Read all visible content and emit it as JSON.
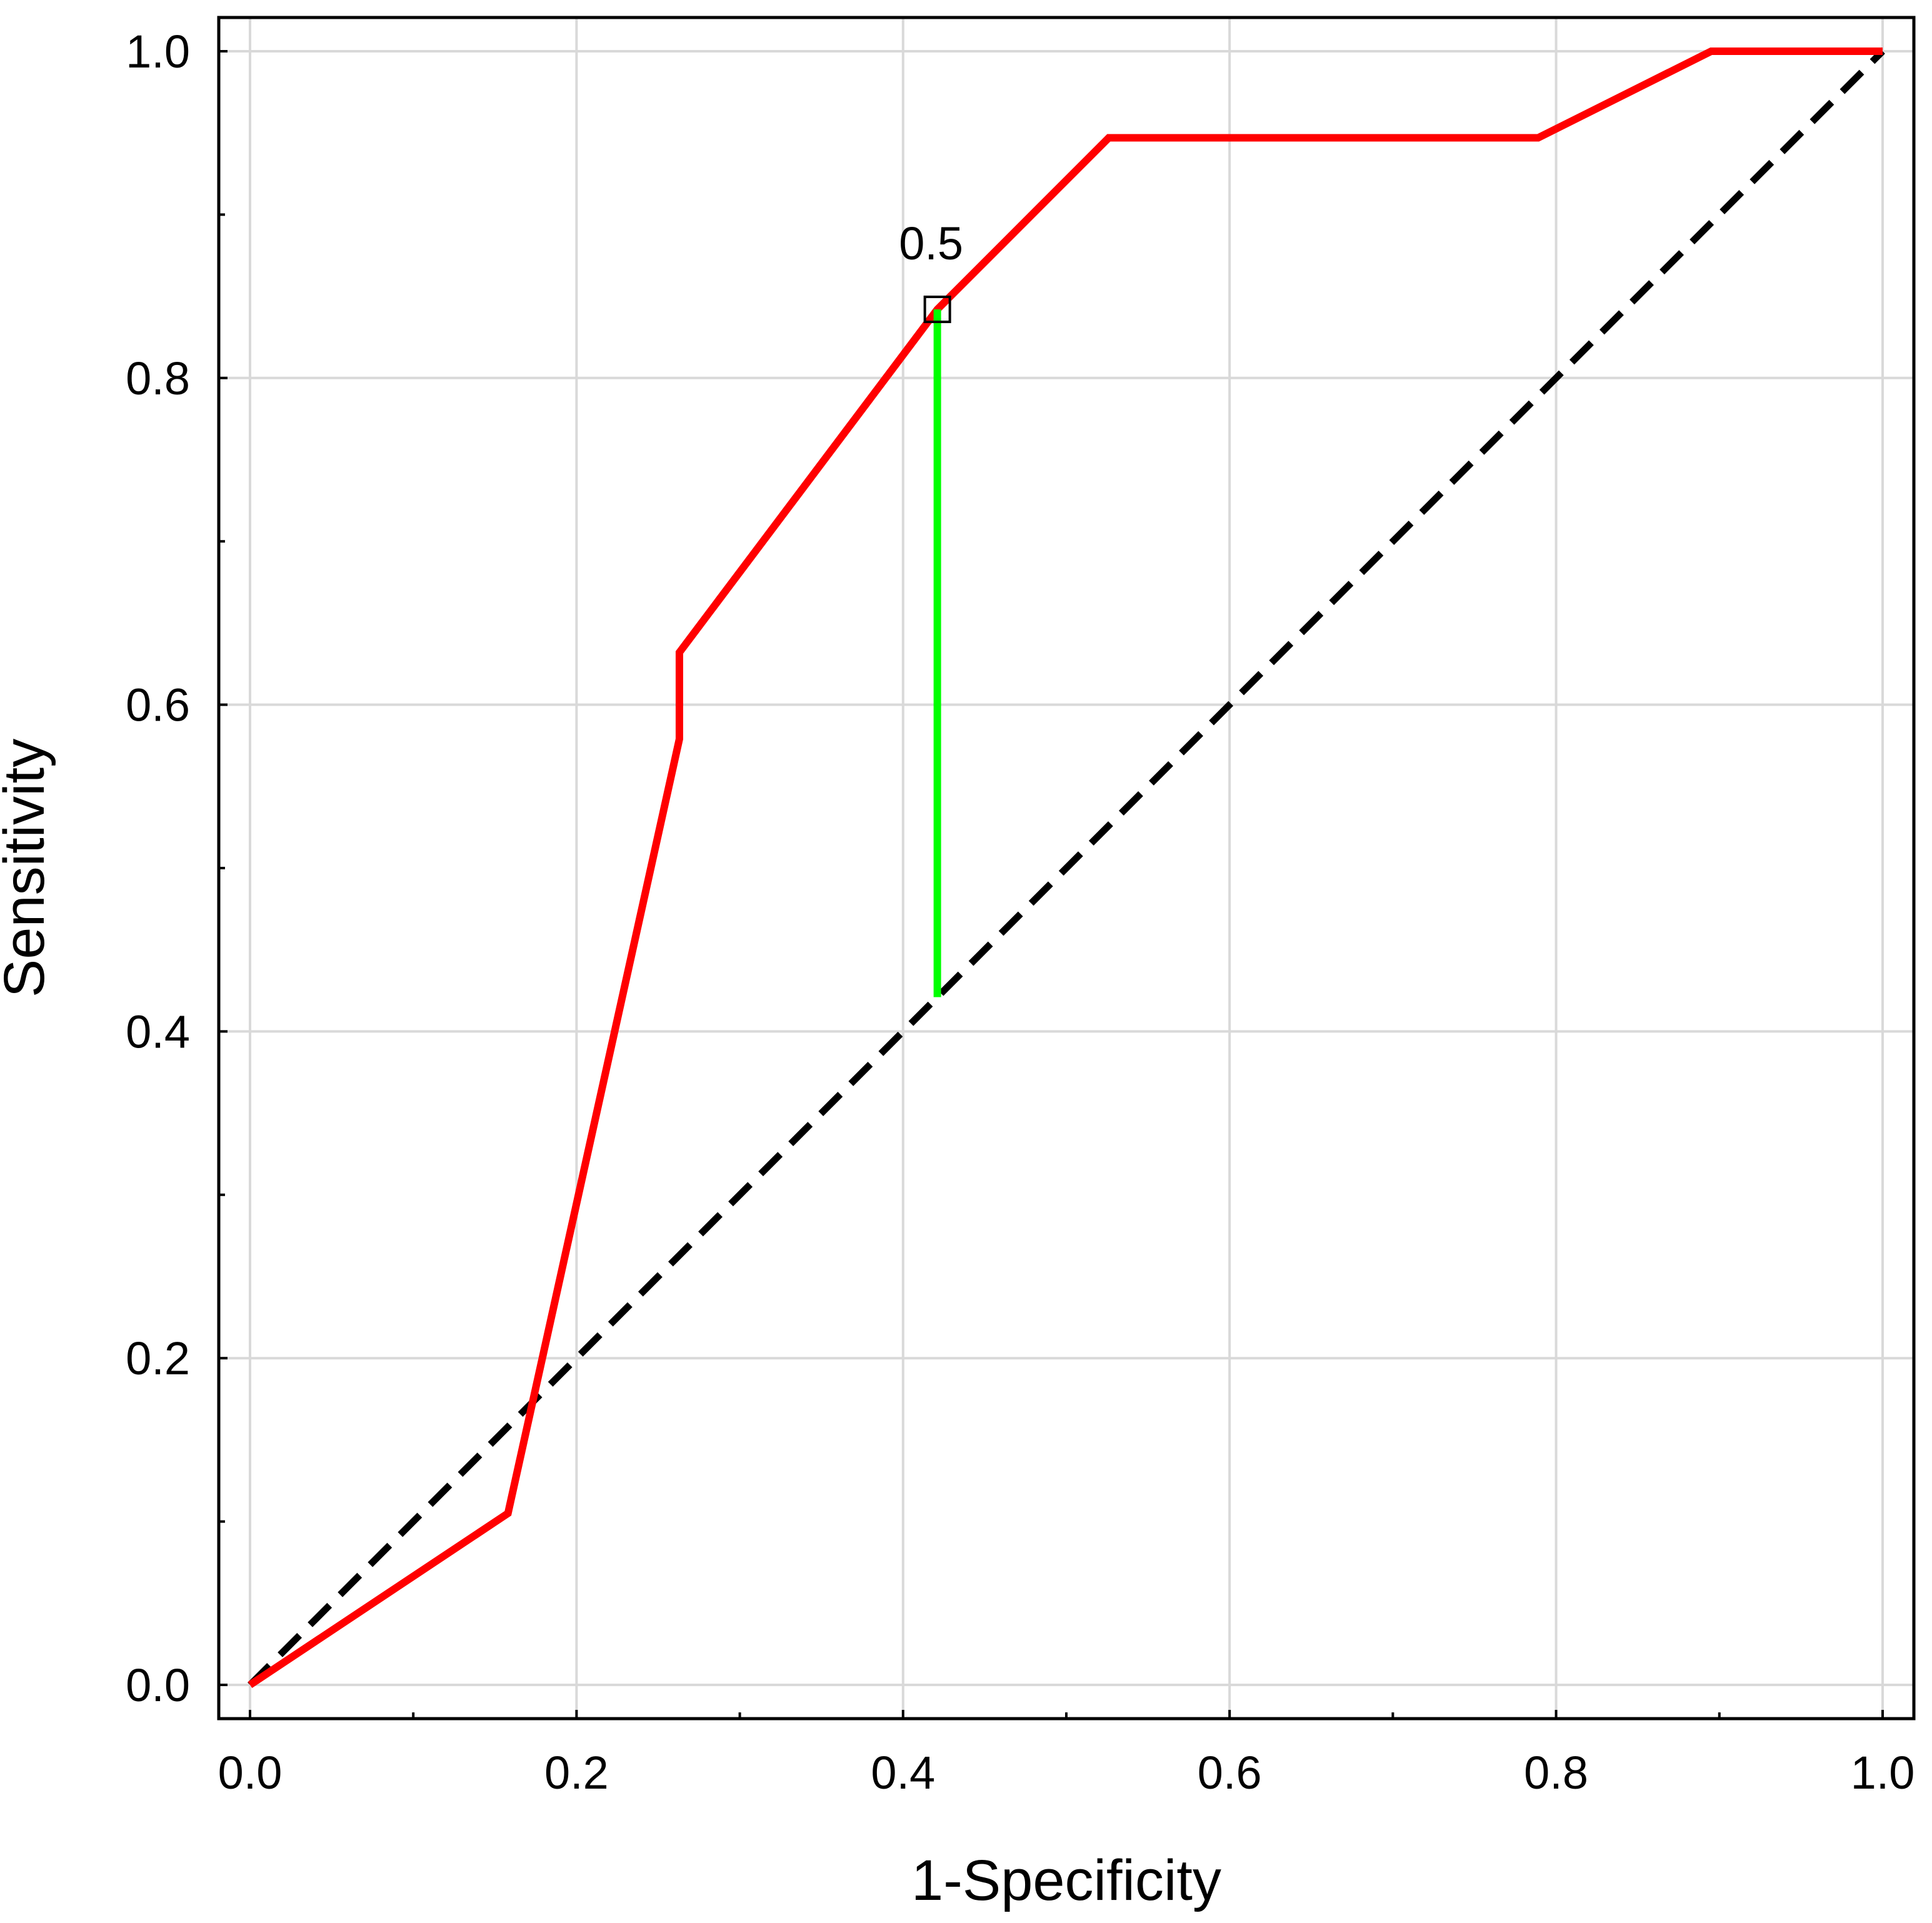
{
  "chart_data": {
    "type": "line",
    "title": "",
    "xlabel": "1-Specificity",
    "ylabel": "Sensitivity",
    "xlim": [
      0,
      1
    ],
    "ylim": [
      0,
      1
    ],
    "grid": true,
    "x_ticks": [
      "0.0",
      "0.2",
      "0.4",
      "0.6",
      "0.8",
      "1.0"
    ],
    "y_ticks": [
      "0.0",
      "0.2",
      "0.4",
      "0.6",
      "0.8",
      "1.0"
    ],
    "series": [
      {
        "color": "#ff0000",
        "style": "solid",
        "x": [
          0.0,
          0.158,
          0.263,
          0.263,
          0.421,
          0.526,
          0.789,
          0.895,
          1.0
        ],
        "y": [
          0.0,
          0.105,
          0.579,
          0.632,
          0.842,
          0.947,
          0.947,
          1.0,
          1.0
        ]
      },
      {
        "color": "#000000",
        "style": "dashed",
        "x": [
          0.0,
          1.0
        ],
        "y": [
          0.0,
          1.0
        ]
      }
    ],
    "annotations": [
      {
        "type": "marker",
        "shape": "square",
        "x": 0.421,
        "y": 0.842,
        "label": "0.5"
      },
      {
        "type": "vertical-segment",
        "color": "#00ff00",
        "x": 0.421,
        "y_from": 0.421,
        "y_to": 0.842
      }
    ]
  }
}
